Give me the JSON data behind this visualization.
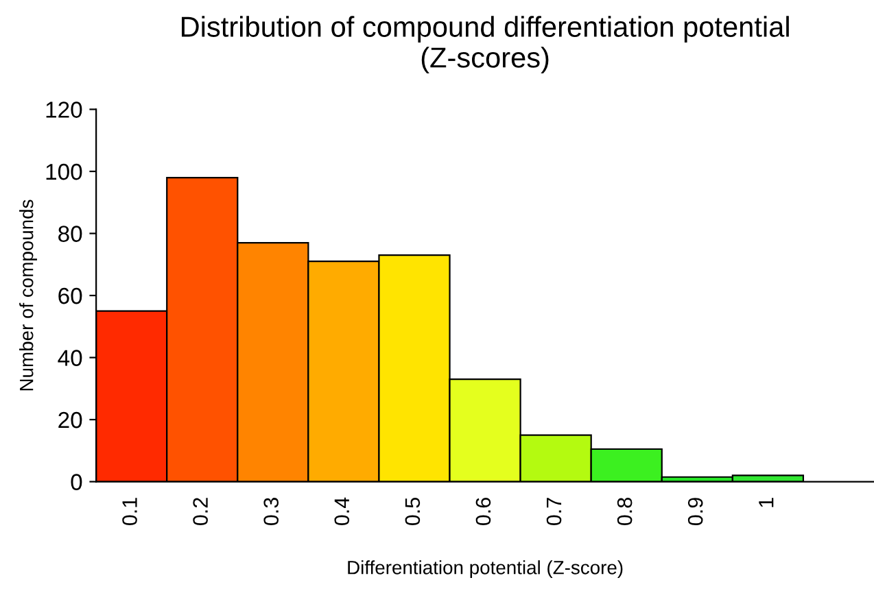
{
  "chart_data": {
    "type": "bar",
    "title": "Distribution of compound differentiation potential\n(Z-scores)",
    "xlabel": "Differentiation potential (Z-score)",
    "ylabel": "Number of compounds",
    "categories": [
      "0.1",
      "0.2",
      "0.3",
      "0.4",
      "0.5",
      "0.6",
      "0.7",
      "0.8",
      "0.9",
      "1"
    ],
    "values": [
      55,
      98,
      77,
      71,
      73,
      33,
      15,
      10.5,
      1.5,
      2
    ],
    "colors": [
      "#ff2a00",
      "#ff5200",
      "#ff8400",
      "#ffab00",
      "#ffe400",
      "#e4ff1e",
      "#b4fa10",
      "#3cf020",
      "#28e628",
      "#32e632"
    ],
    "ylim": [
      0,
      120
    ],
    "yticks": [
      0,
      20,
      40,
      60,
      80,
      100,
      120
    ],
    "grid": false,
    "legend": false
  }
}
